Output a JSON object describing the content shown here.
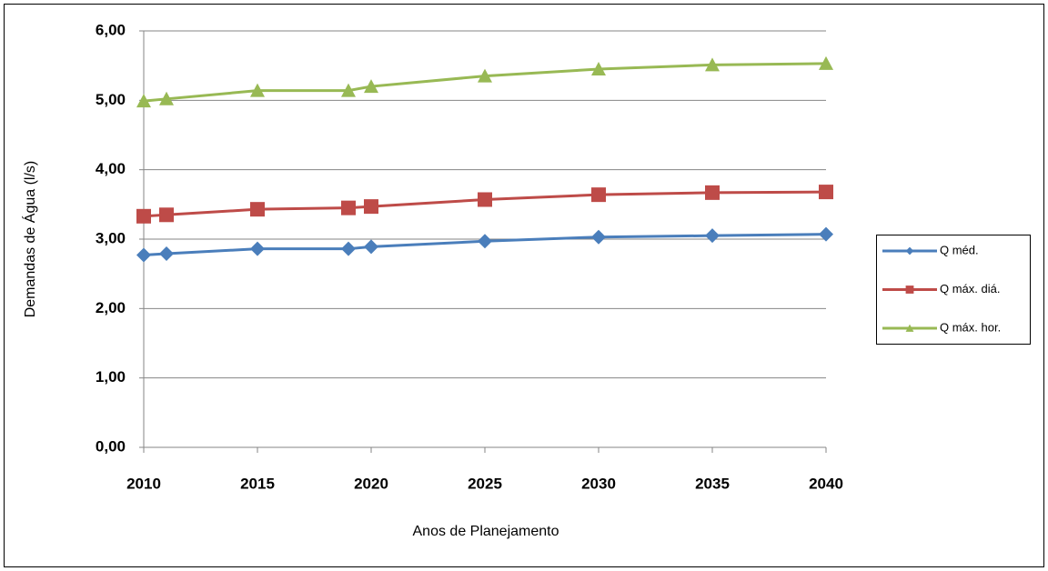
{
  "chart_data": {
    "type": "line",
    "x_label": "Anos de Planejamento",
    "y_label": "Demandas de Água (l/s)",
    "x": [
      2010,
      2011,
      2015,
      2019,
      2020,
      2025,
      2030,
      2035,
      2040
    ],
    "series": [
      {
        "name": "Q méd.",
        "color": "#4a7ebb",
        "marker": "diamond",
        "values": [
          2.77,
          2.79,
          2.86,
          2.86,
          2.89,
          2.97,
          3.03,
          3.05,
          3.07
        ]
      },
      {
        "name": "Q máx. diá.",
        "color": "#be4b48",
        "marker": "square",
        "values": [
          3.33,
          3.35,
          3.43,
          3.45,
          3.47,
          3.57,
          3.64,
          3.67,
          3.68
        ]
      },
      {
        "name": "Q máx. hor.",
        "color": "#98b954",
        "marker": "triangle",
        "values": [
          4.99,
          5.02,
          5.14,
          5.14,
          5.2,
          5.35,
          5.45,
          5.51,
          5.53
        ]
      }
    ],
    "xlim": [
      2010,
      2040
    ],
    "xticks": [
      2010,
      2015,
      2020,
      2025,
      2030,
      2035,
      2040
    ],
    "ylim": [
      0,
      6
    ],
    "yticks": [
      {
        "value": 0,
        "label": "0,00"
      },
      {
        "value": 1,
        "label": "1,00"
      },
      {
        "value": 2,
        "label": "2,00"
      },
      {
        "value": 3,
        "label": "3,00"
      },
      {
        "value": 4,
        "label": "4,00"
      },
      {
        "value": 5,
        "label": "5,00"
      },
      {
        "value": 6,
        "label": "6,00"
      }
    ],
    "grid": true,
    "legend": "right"
  }
}
